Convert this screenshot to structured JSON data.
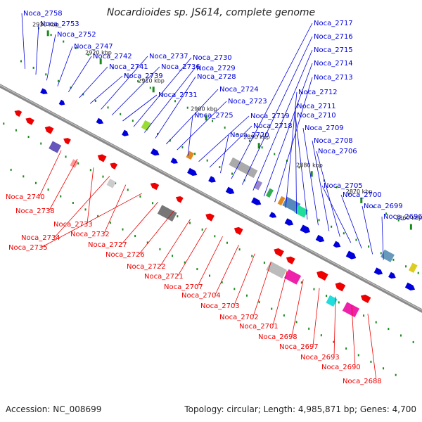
{
  "title": "Nocardioides sp. JS614, complete genome",
  "footer": {
    "accession": "Accession: NC_008699",
    "topology": "Topology: circular; Length: 4,985,871 bp; Genes: 4,700"
  },
  "colors": {
    "backbone": "#8a8a8a",
    "forward": "#0000dd",
    "reverse": "#ee0000",
    "tick": "#1a8a1a"
  },
  "kbp_ticks": [
    "2930 kbp",
    "2920 kbp",
    "2910 kbp",
    "2900 kbp",
    "2890 kbp",
    "2880 kbp",
    "2870 kbp",
    "2860 kbp"
  ],
  "top_labels": [
    "Noca_2758",
    "Noca_2753",
    "Noca_2752",
    "Noca_2747",
    "Noca_2742",
    "Noca_2741",
    "Noca_2739",
    "Noca_2737",
    "Noca_2736",
    "Noca_2731",
    "Noca_2730",
    "Noca_2729",
    "Noca_2728",
    "Noca_2724",
    "Noca_2723",
    "Noca_2725",
    "Noca_2719",
    "Noca_2718",
    "Noca_2720",
    "Noca_2717",
    "Noca_2716",
    "Noca_2715",
    "Noca_2714",
    "Noca_2713",
    "Noca_2712",
    "Noca_2711",
    "Noca_2710",
    "Noca_2709",
    "Noca_2708",
    "Noca_2706",
    "Noca_2705",
    "Noca_2700",
    "Noca_2699",
    "Noca_2696"
  ],
  "bottom_labels": [
    "Noca_2740",
    "Noca_2738",
    "Noca_2733",
    "Noca_2734",
    "Noca_2732",
    "Noca_2735",
    "Noca_2727",
    "Noca_2726",
    "Noca_2722",
    "Noca_2721",
    "Noca_2707",
    "Noca_2704",
    "Noca_2703",
    "Noca_2702",
    "Noca_2701",
    "Noca_2698",
    "Noca_2697",
    "Noca_2693",
    "Noca_2690",
    "Noca_2688"
  ]
}
